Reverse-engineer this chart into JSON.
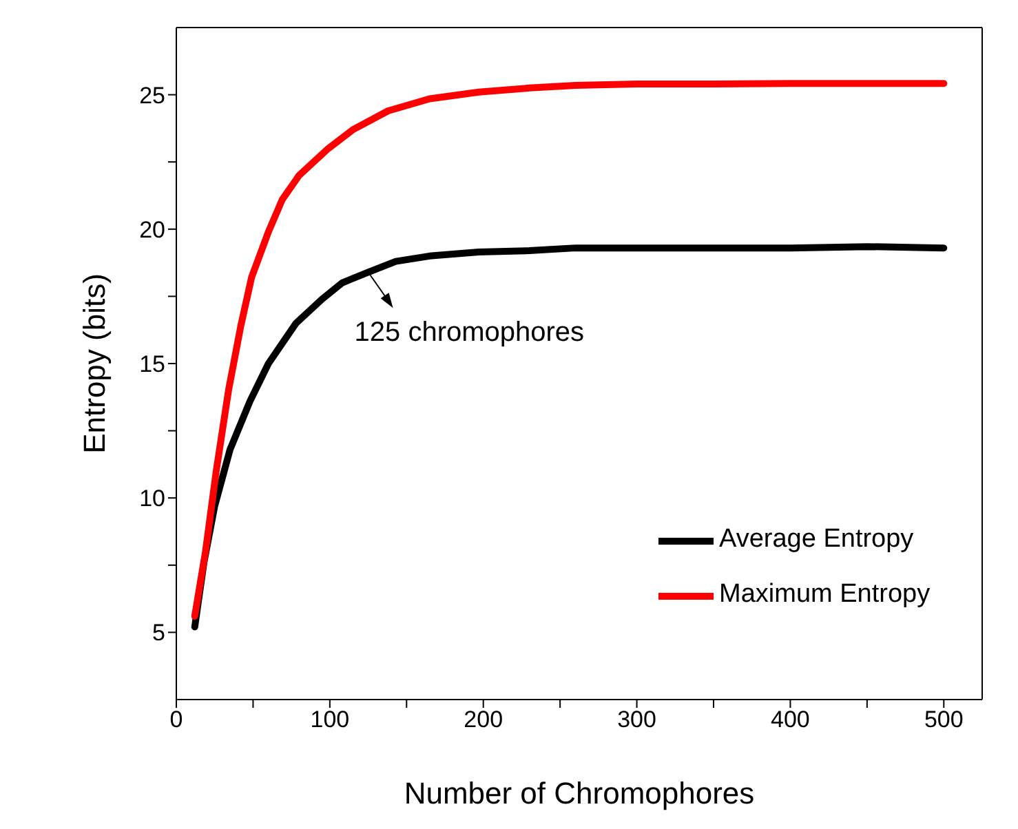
{
  "chart_data": {
    "type": "line",
    "xlabel": "Number of Chromophores",
    "ylabel": "Entropy (bits)",
    "xlim": [
      0,
      525
    ],
    "xticks": [
      0,
      {
        "value": 50,
        "label": null
      },
      100,
      {
        "value": 150,
        "label": null
      },
      200,
      {
        "value": 250,
        "label": null
      },
      300,
      {
        "value": 350,
        "label": null
      },
      400,
      {
        "value": 450,
        "label": null
      },
      500
    ],
    "ylim": [
      2.5,
      27.5
    ],
    "yticks": [
      5,
      {
        "value": 7.5,
        "label": null
      },
      10,
      {
        "value": 12.5,
        "label": null
      },
      15,
      {
        "value": 17.5,
        "label": null
      },
      20,
      {
        "value": 22.5,
        "label": null
      },
      25
    ],
    "legend": "bottom right",
    "marker": "none",
    "line_style": "solid",
    "annotations": [
      {
        "text": "125 chromophores",
        "x": 125,
        "y": 18.4
      }
    ],
    "series": [
      {
        "name": "Average Entropy",
        "color": "#000000",
        "x": [
          12,
          18,
          25,
          35,
          48,
          60,
          78,
          95,
          108,
          125,
          143,
          165,
          197,
          230,
          260,
          300,
          350,
          400,
          450,
          500
        ],
        "values": [
          5.2,
          7.6,
          9.7,
          11.8,
          13.6,
          15.0,
          16.5,
          17.4,
          18.0,
          18.4,
          18.8,
          19.0,
          19.15,
          19.2,
          19.3,
          19.3,
          19.3,
          19.3,
          19.35,
          19.3
        ]
      },
      {
        "name": "Maximum Entropy",
        "color": "#ff0000",
        "x": [
          12,
          19,
          26,
          34,
          42,
          49,
          60,
          69,
          80,
          99,
          115,
          138,
          165,
          197,
          230,
          260,
          300,
          350,
          400,
          450,
          500
        ],
        "values": [
          5.6,
          8.0,
          11.0,
          14.0,
          16.4,
          18.2,
          19.9,
          21.1,
          22.0,
          23.0,
          23.7,
          24.4,
          24.85,
          25.1,
          25.25,
          25.35,
          25.4,
          25.4,
          25.42,
          25.42,
          25.42
        ]
      }
    ]
  }
}
